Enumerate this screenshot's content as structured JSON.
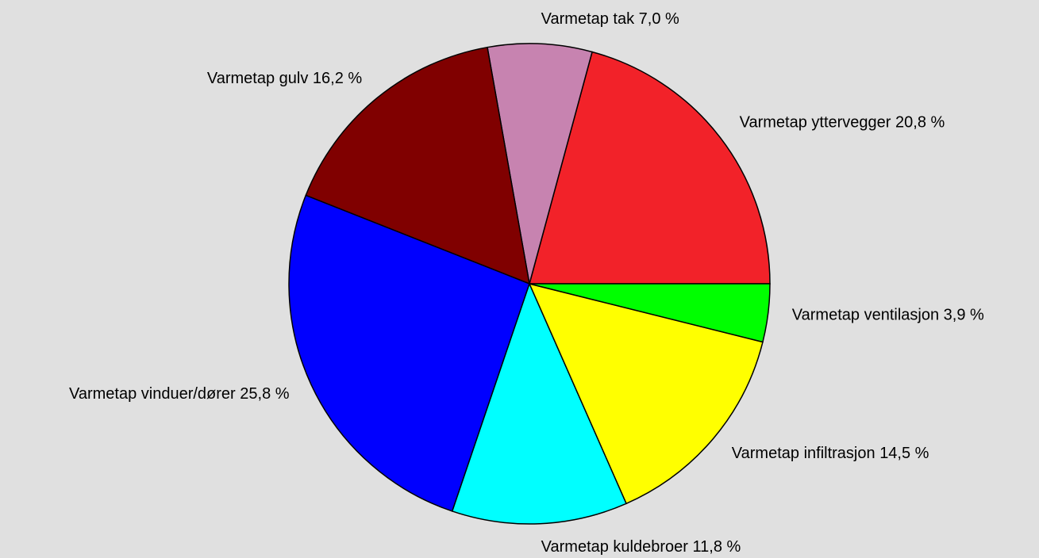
{
  "chart_data": {
    "type": "pie",
    "categories": [
      "Varmetap yttervegger",
      "Varmetap tak",
      "Varmetap gulv",
      "Varmetap vinduer/dører",
      "Varmetap kuldebroer",
      "Varmetap infiltrasjon",
      "Varmetap ventilasjon"
    ],
    "values": [
      20.8,
      7.0,
      16.2,
      25.8,
      11.8,
      14.5,
      3.9
    ],
    "value_labels": [
      "20,8 %",
      "7,0 %",
      "16,2 %",
      "25,8 %",
      "11,8 %",
      "14,5 %",
      "3,9 %"
    ],
    "colors": [
      "#f22229",
      "#c783b0",
      "#800000",
      "#0000ff",
      "#00ffff",
      "#ffff00",
      "#00ff00"
    ]
  }
}
